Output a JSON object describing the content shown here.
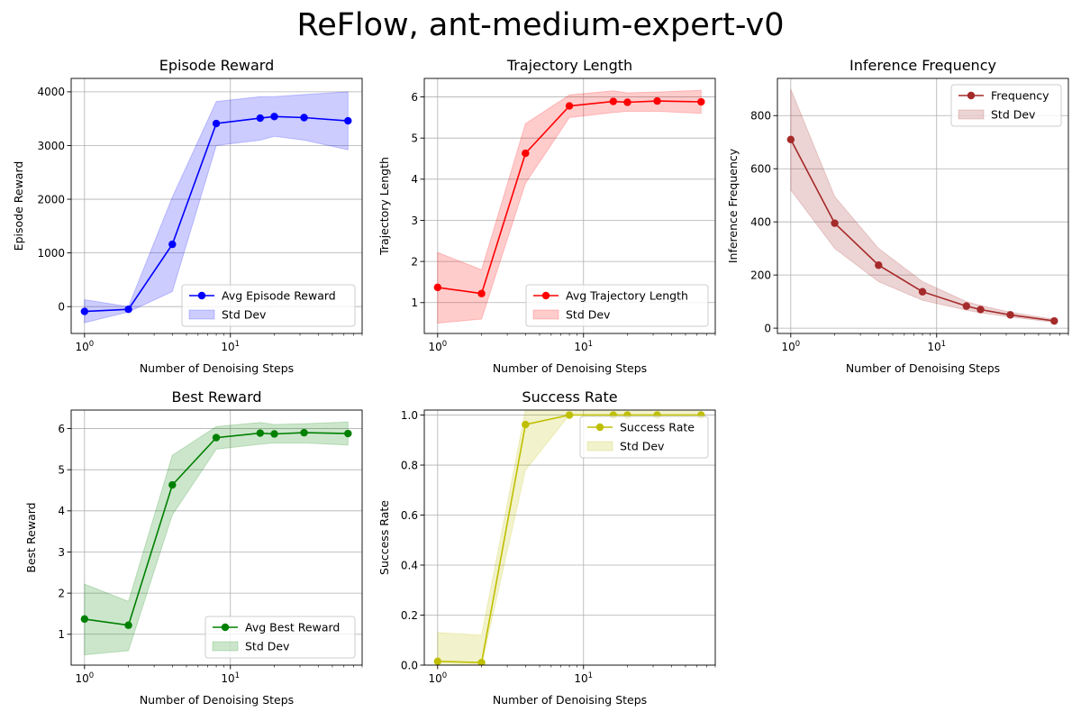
{
  "figure": {
    "title": "ReFlow, ant-medium-expert-v0"
  },
  "chart_data": [
    {
      "type": "line",
      "title": "Episode Reward",
      "xlabel": "Number of Denoising Steps",
      "ylabel": "Episode Reward",
      "xscale": "log",
      "xlim": [
        0.81,
        80
      ],
      "ylim": [
        -500,
        4250
      ],
      "yticks": [
        0,
        1000,
        2000,
        3000,
        4000
      ],
      "grid": true,
      "legend_position": "lower-right",
      "color": "#0000ff",
      "x": [
        1,
        2,
        4,
        8,
        16,
        20,
        32,
        64
      ],
      "series": [
        {
          "name": "Avg Episode Reward",
          "values": [
            -90,
            -50,
            1160,
            3410,
            3510,
            3540,
            3520,
            3460
          ]
        },
        {
          "name": "Std Dev",
          "lower": [
            -300,
            -100,
            280,
            3000,
            3100,
            3170,
            3100,
            2920
          ],
          "upper": [
            130,
            0,
            2040,
            3820,
            3910,
            3910,
            3950,
            4000
          ]
        }
      ]
    },
    {
      "type": "line",
      "title": "Trajectory Length",
      "xlabel": "Number of Denoising Steps",
      "ylabel": "Trajectory Length",
      "xscale": "log",
      "xlim": [
        0.81,
        80
      ],
      "ylim": [
        0.25,
        6.45
      ],
      "yticks": [
        1,
        2,
        3,
        4,
        5,
        6
      ],
      "grid": true,
      "legend_position": "lower-right",
      "color": "#ff0000",
      "x": [
        1,
        2,
        4,
        8,
        16,
        20,
        32,
        64
      ],
      "series": [
        {
          "name": "Avg Trajectory Length",
          "values": [
            1.37,
            1.22,
            4.63,
            5.78,
            5.89,
            5.87,
            5.9,
            5.88
          ]
        },
        {
          "name": "Std Dev",
          "lower": [
            0.5,
            0.6,
            3.9,
            5.5,
            5.62,
            5.65,
            5.65,
            5.6
          ],
          "upper": [
            2.22,
            1.8,
            5.35,
            6.05,
            6.15,
            6.1,
            6.12,
            6.16
          ]
        }
      ]
    },
    {
      "type": "line",
      "title": "Inference Frequency",
      "xlabel": "Number of Denoising Steps",
      "ylabel": "Inference Frequency",
      "xscale": "log",
      "xlim": [
        0.81,
        80
      ],
      "ylim": [
        -20,
        940
      ],
      "yticks": [
        0,
        200,
        400,
        600,
        800
      ],
      "grid": true,
      "legend_position": "top-right",
      "color": "#a52a2a",
      "x": [
        1,
        2,
        4,
        8,
        16,
        20,
        32,
        64
      ],
      "series": [
        {
          "name": "Frequency",
          "values": [
            710,
            395,
            237,
            137,
            83,
            70,
            50,
            27
          ]
        },
        {
          "name": "Std Dev",
          "lower": [
            520,
            300,
            175,
            105,
            68,
            58,
            42,
            22
          ],
          "upper": [
            900,
            495,
            300,
            175,
            100,
            85,
            60,
            33
          ]
        }
      ]
    },
    {
      "type": "line",
      "title": "Best Reward",
      "xlabel": "Number of Denoising Steps",
      "ylabel": "Best Reward",
      "xscale": "log",
      "xlim": [
        0.81,
        80
      ],
      "ylim": [
        0.25,
        6.45
      ],
      "yticks": [
        1,
        2,
        3,
        4,
        5,
        6
      ],
      "grid": true,
      "legend_position": "lower-right",
      "color": "#008000",
      "x": [
        1,
        2,
        4,
        8,
        16,
        20,
        32,
        64
      ],
      "series": [
        {
          "name": "Avg Best Reward",
          "values": [
            1.37,
            1.22,
            4.63,
            5.78,
            5.89,
            5.87,
            5.9,
            5.88
          ]
        },
        {
          "name": "Std Dev",
          "lower": [
            0.5,
            0.6,
            3.9,
            5.5,
            5.62,
            5.65,
            5.65,
            5.6
          ],
          "upper": [
            2.22,
            1.8,
            5.35,
            6.05,
            6.15,
            6.1,
            6.12,
            6.16
          ]
        }
      ]
    },
    {
      "type": "line",
      "title": "Success Rate",
      "xlabel": "Number of Denoising Steps",
      "ylabel": "Success Rate",
      "xscale": "log",
      "xlim": [
        0.81,
        80
      ],
      "ylim": [
        0,
        1.02
      ],
      "yticks": [
        0.0,
        0.2,
        0.4,
        0.6,
        0.8,
        1.0
      ],
      "grid": true,
      "legend_position": "top-right",
      "color": "#bfbf00",
      "x": [
        1,
        2,
        4,
        8,
        16,
        20,
        32,
        64
      ],
      "series": [
        {
          "name": "Success Rate",
          "values": [
            0.015,
            0.01,
            0.962,
            1.0,
            1.0,
            1.0,
            1.0,
            1.0
          ]
        },
        {
          "name": "Std Dev",
          "lower": [
            0,
            0,
            0.78,
            1.0,
            1.0,
            1.0,
            1.0,
            1.0
          ],
          "upper": [
            0.13,
            0.12,
            1.02,
            1.02,
            1.02,
            1.02,
            1.02,
            1.02
          ]
        }
      ]
    }
  ]
}
